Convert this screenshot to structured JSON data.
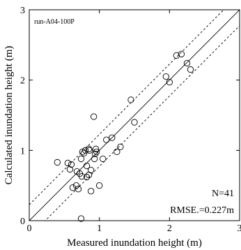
{
  "chart_data": {
    "type": "scatter",
    "title": "",
    "run_label": "run-A04-100P",
    "xlabel": "Measured inundation height (m)",
    "ylabel": "Calculated inundation height (m)",
    "xlim": [
      0,
      3
    ],
    "ylim": [
      0,
      3
    ],
    "xticks": [
      "0",
      "1",
      "2",
      "3"
    ],
    "yticks": [
      "0",
      "1",
      "2",
      "3"
    ],
    "grid": false,
    "stats": {
      "n": "N=41",
      "rmse": "RMSE.=0.227m"
    },
    "reference_lines": [
      {
        "style": "solid",
        "slope": 1,
        "intercept": 0
      },
      {
        "style": "dashed",
        "slope": 1,
        "intercept": 0.227
      },
      {
        "style": "dashed",
        "slope": 1,
        "intercept": -0.227
      }
    ],
    "points": [
      [
        0.4,
        0.83
      ],
      [
        0.55,
        0.82
      ],
      [
        0.58,
        0.73
      ],
      [
        0.6,
        0.8
      ],
      [
        0.62,
        0.47
      ],
      [
        0.67,
        0.5
      ],
      [
        0.68,
        0.7
      ],
      [
        0.72,
        0.67
      ],
      [
        0.75,
        0.63
      ],
      [
        0.74,
        0.03
      ],
      [
        0.74,
        0.88
      ],
      [
        0.76,
        0.98
      ],
      [
        0.78,
        0.96
      ],
      [
        0.8,
        1.0
      ],
      [
        0.82,
        0.62
      ],
      [
        0.82,
        0.78
      ],
      [
        0.85,
        0.65
      ],
      [
        0.85,
        1.02
      ],
      [
        0.86,
        1.0
      ],
      [
        0.88,
        0.42
      ],
      [
        0.92,
        1.48
      ],
      [
        0.93,
        0.88
      ],
      [
        0.94,
        0.95
      ],
      [
        0.95,
        1.02
      ],
      [
        1.0,
        0.5
      ],
      [
        1.05,
        0.88
      ],
      [
        1.1,
        1.15
      ],
      [
        1.18,
        1.18
      ],
      [
        1.25,
        0.98
      ],
      [
        1.3,
        1.05
      ],
      [
        1.45,
        1.72
      ],
      [
        1.5,
        1.4
      ],
      [
        1.95,
        2.05
      ],
      [
        2.0,
        1.97
      ],
      [
        2.1,
        2.35
      ],
      [
        2.17,
        2.37
      ],
      [
        2.25,
        2.24
      ],
      [
        2.3,
        2.15
      ],
      [
        0.96,
        0.98
      ],
      [
        0.88,
        0.72
      ],
      [
        0.7,
        0.45
      ]
    ]
  }
}
